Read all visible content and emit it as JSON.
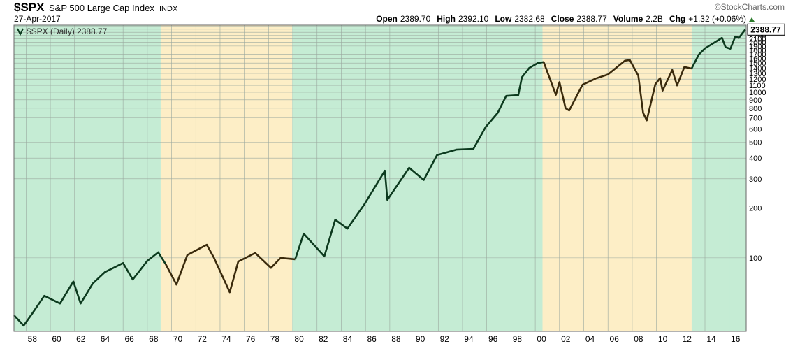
{
  "chart_data": {
    "type": "line",
    "symbol": "$SPX",
    "title": "S&P 500 Large Cap Index",
    "exchange": "INDX",
    "date": "27-Apr-2017",
    "copyright": "©StockCharts.com",
    "quote": [
      {
        "name": "Open",
        "value": "2389.70"
      },
      {
        "name": "High",
        "value": "2392.10"
      },
      {
        "name": "Low",
        "value": "2382.68"
      },
      {
        "name": "Close",
        "value": "2388.77"
      },
      {
        "name": "Volume",
        "value": "2.2B"
      },
      {
        "name": "Chg",
        "value": "+1.32 (+0.06%)"
      }
    ],
    "legend": "$SPX (Daily) 2388.77",
    "last_label": "2388.77",
    "log_y": true,
    "grid": true,
    "xlim": [
      1957.0,
      2017.4
    ],
    "ylim": [
      36,
      2540
    ],
    "xticks": [
      {
        "value": 1958,
        "label": "58"
      },
      {
        "value": 1960,
        "label": "60"
      },
      {
        "value": 1962,
        "label": "62"
      },
      {
        "value": 1964,
        "label": "64"
      },
      {
        "value": 1966,
        "label": "66"
      },
      {
        "value": 1968,
        "label": "68"
      },
      {
        "value": 1970,
        "label": "70"
      },
      {
        "value": 1972,
        "label": "72"
      },
      {
        "value": 1974,
        "label": "74"
      },
      {
        "value": 1976,
        "label": "76"
      },
      {
        "value": 1978,
        "label": "78"
      },
      {
        "value": 1980,
        "label": "80"
      },
      {
        "value": 1982,
        "label": "82"
      },
      {
        "value": 1984,
        "label": "84"
      },
      {
        "value": 1986,
        "label": "86"
      },
      {
        "value": 1988,
        "label": "88"
      },
      {
        "value": 1990,
        "label": "90"
      },
      {
        "value": 1992,
        "label": "92"
      },
      {
        "value": 1994,
        "label": "94"
      },
      {
        "value": 1996,
        "label": "96"
      },
      {
        "value": 1998,
        "label": "98"
      },
      {
        "value": 2000,
        "label": "00"
      },
      {
        "value": 2002,
        "label": "02"
      },
      {
        "value": 2004,
        "label": "04"
      },
      {
        "value": 2006,
        "label": "06"
      },
      {
        "value": 2008,
        "label": "08"
      },
      {
        "value": 2010,
        "label": "10"
      },
      {
        "value": 2012,
        "label": "12"
      },
      {
        "value": 2014,
        "label": "14"
      },
      {
        "value": 2016,
        "label": "16"
      }
    ],
    "yticks": [
      100,
      200,
      300,
      400,
      500,
      600,
      700,
      800,
      900,
      1000,
      1100,
      1200,
      1300,
      1400,
      1500,
      1600,
      1700,
      1800,
      1900,
      2000,
      2100,
      2200,
      2300,
      2400,
      2500
    ],
    "bands": [
      {
        "start": 1957.0,
        "end": 1969.1,
        "color": "#c5ecd4",
        "line_color": "#0c3a1e"
      },
      {
        "start": 1969.1,
        "end": 1979.95,
        "color": "#fdeec6",
        "line_color": "#3a2a0c"
      },
      {
        "start": 1979.95,
        "end": 2000.6,
        "color": "#c5ecd4",
        "line_color": "#0c3a1e"
      },
      {
        "start": 2000.6,
        "end": 2012.9,
        "color": "#fdeec6",
        "line_color": "#3a2a0c"
      },
      {
        "start": 2012.9,
        "end": 2017.4,
        "color": "#c5ecd4",
        "line_color": "#0c3a1e"
      }
    ],
    "x": [
      1957.0,
      1957.8,
      1958.5,
      1959.5,
      1960.8,
      1961.9,
      1962.5,
      1963.5,
      1964.5,
      1966.0,
      1966.8,
      1968.0,
      1968.9,
      1969.5,
      1970.4,
      1971.3,
      1972.9,
      1973.5,
      1974.8,
      1975.5,
      1976.9,
      1978.2,
      1979.0,
      1980.2,
      1980.9,
      1982.6,
      1983.5,
      1984.5,
      1985.9,
      1987.6,
      1987.8,
      1989.6,
      1990.8,
      1991.9,
      1993.5,
      1994.9,
      1995.9,
      1996.9,
      1997.6,
      1998.6,
      1998.9,
      1999.5,
      2000.2,
      2000.7,
      2001.7,
      2002.0,
      2002.5,
      2002.8,
      2003.9,
      2005.0,
      2006.0,
      2007.4,
      2007.8,
      2008.5,
      2008.9,
      2009.2,
      2009.9,
      2010.3,
      2010.5,
      2011.3,
      2011.7,
      2012.3,
      2012.9,
      2013.5,
      2014.0,
      2014.8,
      2015.4,
      2015.7,
      2016.1,
      2016.5,
      2016.8,
      2017.32
    ],
    "values": [
      45,
      39,
      46,
      59,
      53,
      72,
      53,
      70,
      82,
      93,
      74,
      96,
      108,
      92,
      69,
      104,
      120,
      100,
      62,
      95,
      107,
      87,
      100,
      98,
      140,
      102,
      170,
      150,
      210,
      336,
      224,
      350,
      295,
      417,
      450,
      455,
      615,
      750,
      950,
      960,
      1230,
      1400,
      1500,
      1520,
      965,
      1150,
      800,
      776,
      1110,
      1210,
      1280,
      1550,
      1565,
      1260,
      750,
      676,
      1115,
      1217,
      1022,
      1363,
      1099,
      1420,
      1390,
      1690,
      1840,
      2000,
      2130,
      1870,
      1830,
      2170,
      2130,
      2388.77
    ]
  }
}
